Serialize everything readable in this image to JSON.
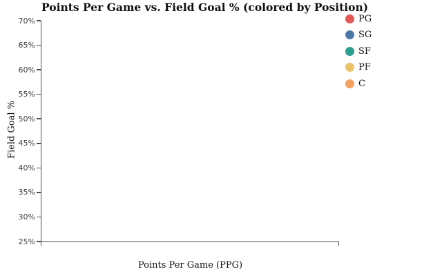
{
  "chart_data": {
    "type": "scatter",
    "title": "Points Per Game vs. Field Goal % (colored by Position)",
    "xlabel": "Points Per Game (PPG)",
    "ylabel": "Field Goal %",
    "y_tick_labels": [
      "70%",
      "65%",
      "60%",
      "55%",
      "50%",
      "45%",
      "40%",
      "35%",
      "30%",
      "25%"
    ],
    "ylim_percent": [
      25,
      70
    ],
    "x_tick_labels": [],
    "grid": false,
    "plot_area_empty": true,
    "legend": {
      "position": "outside-top-right",
      "entries": [
        {
          "label": "PG",
          "color": "#e45756"
        },
        {
          "label": "SG",
          "color": "#4c78a8"
        },
        {
          "label": "SF",
          "color": "#2a9d8f"
        },
        {
          "label": "PF",
          "color": "#e9c46a"
        },
        {
          "label": "C",
          "color": "#f4a261"
        }
      ]
    },
    "series": [
      {
        "name": "PG",
        "points": []
      },
      {
        "name": "SG",
        "points": []
      },
      {
        "name": "SF",
        "points": []
      },
      {
        "name": "PF",
        "points": []
      },
      {
        "name": "C",
        "points": []
      }
    ]
  },
  "colors": {
    "background": "#ffffff",
    "axis": "#4a4a4a",
    "text": "#111111",
    "tick_label": "#3c3c3c"
  }
}
